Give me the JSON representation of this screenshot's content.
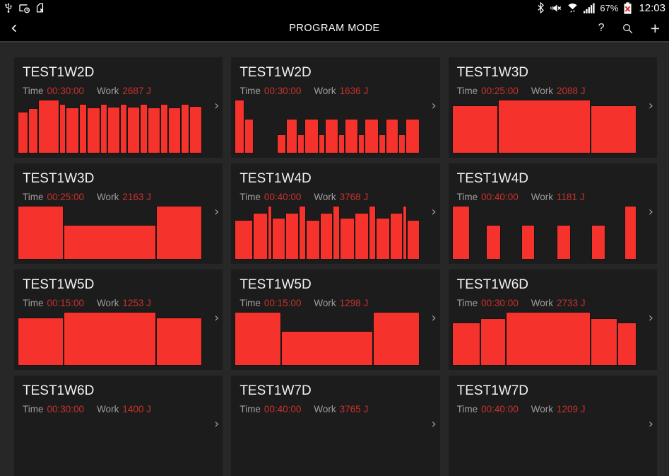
{
  "status_bar": {
    "time": "12:03",
    "battery_percent": "67%",
    "left_icons": [
      "usb-icon",
      "screen-timeout-icon",
      "no-sim-icon"
    ],
    "right_icons": [
      "bluetooth-icon",
      "mute-icon",
      "wifi-icon",
      "signal-strength-icon",
      "battery-alert-icon"
    ]
  },
  "header": {
    "title": "PROGRAM MODE",
    "help_label": "?",
    "plus_label": "+"
  },
  "labels": {
    "time": "Time",
    "work": "Work"
  },
  "glyphs": {
    "chevron_right": "›"
  },
  "colors": {
    "bar_red": "#f5322b",
    "value_red": "#c8322c",
    "card_bg": "#1c1c1c",
    "page_bg": "#272727",
    "app_bar_bg": "#000000"
  },
  "cards": [
    {
      "title": "TEST1W2D",
      "time": "00:30:00",
      "work": "2687 J",
      "bars": [
        [
          1.3,
          0.78
        ],
        [
          1.2,
          0.84
        ],
        [
          2.6,
          1
        ],
        [
          0.8,
          0.92
        ],
        [
          1.6,
          0.86
        ],
        [
          1,
          0.92
        ],
        [
          1.6,
          0.86
        ],
        [
          0.9,
          0.92
        ],
        [
          1.5,
          0.87
        ],
        [
          0.9,
          0.92
        ],
        [
          1.6,
          0.87
        ],
        [
          0.9,
          0.92
        ],
        [
          1.6,
          0.86
        ],
        [
          0.9,
          0.92
        ],
        [
          1.6,
          0.86
        ],
        [
          1,
          0.92
        ],
        [
          1.6,
          0.88
        ]
      ]
    },
    {
      "title": "TEST1W2D",
      "time": "00:30:00",
      "work": "1636 J",
      "bars": [
        [
          1.2,
          1
        ],
        [
          1.1,
          0.65
        ],
        [
          2.8,
          0
        ],
        [
          1.1,
          0.35
        ],
        [
          1.4,
          0.65
        ],
        [
          0.8,
          0.35
        ],
        [
          1.7,
          0.65
        ],
        [
          0.8,
          0.35
        ],
        [
          1.6,
          0.65
        ],
        [
          0.8,
          0.35
        ],
        [
          1.6,
          0.65
        ],
        [
          0.8,
          0.35
        ],
        [
          1.7,
          0.65
        ],
        [
          0.8,
          0.35
        ],
        [
          1.6,
          0.65
        ],
        [
          0.8,
          0.35
        ],
        [
          1.7,
          0.65
        ]
      ]
    },
    {
      "title": "TEST1W3D",
      "time": "00:25:00",
      "work": "2088 J",
      "bars": [
        [
          2,
          0.9
        ],
        [
          4,
          1
        ],
        [
          2,
          0.9
        ]
      ]
    },
    {
      "title": "TEST1W3D",
      "time": "00:25:00",
      "work": "2163 J",
      "bars": [
        [
          2,
          1
        ],
        [
          4,
          0.65
        ],
        [
          2,
          1
        ]
      ]
    },
    {
      "title": "TEST1W4D",
      "time": "00:40:00",
      "work": "3768 J",
      "bars": [
        [
          2.3,
          0.74
        ],
        [
          1.9,
          0.87
        ],
        [
          0.5,
          1
        ],
        [
          1.7,
          0.77
        ],
        [
          1.7,
          0.87
        ],
        [
          0.9,
          1
        ],
        [
          1.8,
          0.74
        ],
        [
          1.6,
          0.87
        ],
        [
          0.9,
          1
        ],
        [
          1.8,
          0.77
        ],
        [
          1.8,
          0.87
        ],
        [
          0.9,
          1
        ],
        [
          1.8,
          0.77
        ],
        [
          1.6,
          0.87
        ],
        [
          0.5,
          1
        ],
        [
          1.6,
          0.74
        ]
      ]
    },
    {
      "title": "TEST1W4D",
      "time": "00:40:00",
      "work": "1181 J",
      "bars": [
        [
          1,
          1
        ],
        [
          0.95,
          0
        ],
        [
          0.85,
          0.65
        ],
        [
          1.15,
          0
        ],
        [
          0.75,
          0.65
        ],
        [
          1.25,
          0
        ],
        [
          0.8,
          0.65
        ],
        [
          1.2,
          0
        ],
        [
          0.8,
          0.65
        ],
        [
          1.05,
          0
        ],
        [
          0.7,
          1
        ]
      ]
    },
    {
      "title": "TEST1W5D",
      "time": "00:15:00",
      "work": "1253 J",
      "bars": [
        [
          2,
          0.9
        ],
        [
          4,
          1
        ],
        [
          2,
          0.9
        ]
      ]
    },
    {
      "title": "TEST1W5D",
      "time": "00:15:00",
      "work": "1298 J",
      "bars": [
        [
          2,
          1
        ],
        [
          4,
          0.65
        ],
        [
          2,
          1
        ]
      ]
    },
    {
      "title": "TEST1W6D",
      "time": "00:30:00",
      "work": "2733 J",
      "bars": [
        [
          1.5,
          0.8
        ],
        [
          1.3,
          0.88
        ],
        [
          4.4,
          1
        ],
        [
          1.4,
          0.88
        ],
        [
          1,
          0.8
        ]
      ]
    },
    {
      "title": "TEST1W6D",
      "time": "00:30:00",
      "work": "1400 J",
      "bars": []
    },
    {
      "title": "TEST1W7D",
      "time": "00:40:00",
      "work": "3765 J",
      "bars": []
    },
    {
      "title": "TEST1W7D",
      "time": "00:40:00",
      "work": "1209 J",
      "bars": []
    }
  ]
}
